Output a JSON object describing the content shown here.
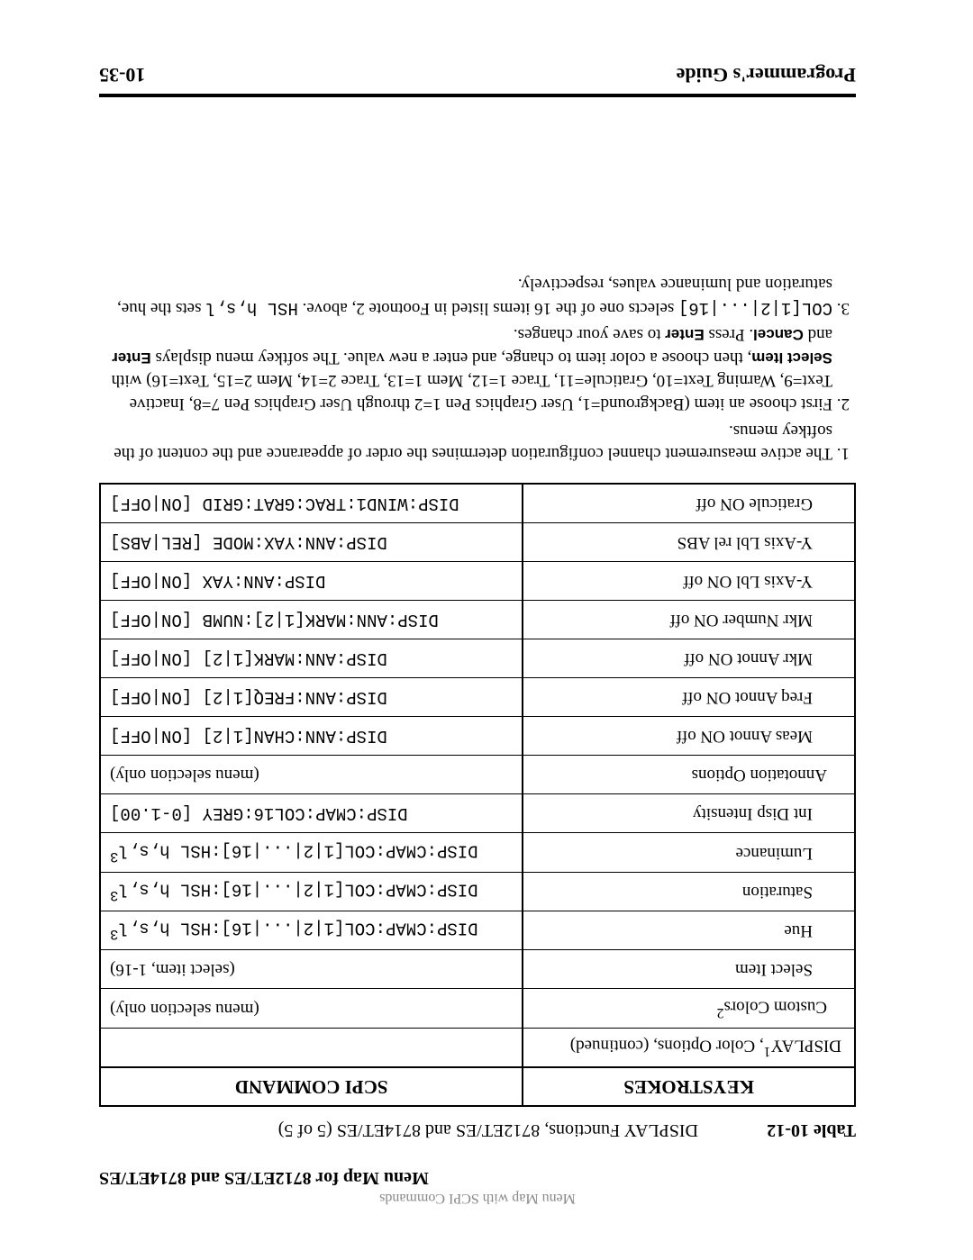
{
  "header": {
    "top_small": "Menu Map with SCPI Commands",
    "menu_map": "Menu Map for 8712ET/ES and 8714ET/ES"
  },
  "caption": {
    "label": "Table 10-12",
    "title": "DISPLAY Functions, 8712ET/ES and 8714ET/ES (5 of 5)"
  },
  "table": {
    "head_left": "KEYSTROKES",
    "head_right": "SCPI COMMAND",
    "rows": [
      {
        "k": "DISPLAY<sup>1</sup>, Color Options, (continued)",
        "s": "",
        "indent": 0
      },
      {
        "k": "Custom Colors<sup>2</sup>",
        "s": "(menu selection only)",
        "indent": 1,
        "menu": true
      },
      {
        "k": "Select Item",
        "s": "(select item, 1-16)",
        "indent": 2,
        "menu": true
      },
      {
        "k": "Hue",
        "s": "DISP:CMAP:COL[1|2|...|16]:HSL h,s,l<sup>3</sup>",
        "indent": 2
      },
      {
        "k": "Saturation",
        "s": "DISP:CMAP:COL[1|2|...|16]:HSL h,s,l<sup>3</sup>",
        "indent": 2
      },
      {
        "k": "Luminance",
        "s": "DISP:CMAP:COL[1|2|...|16]:HSL h,s,l<sup>3</sup>",
        "indent": 2
      },
      {
        "k": "Int Disp Intensity",
        "s": "DISP:CMAP:COL16:GREY [0-1.00]",
        "indent": 2
      },
      {
        "k": "Annotation Options",
        "s": "(menu selection only)",
        "indent": 1,
        "menu": true
      },
      {
        "k": "Meas Annot ON off",
        "s": "DISP:ANN:CHAN[1|2] [ON|OFF]",
        "indent": 2
      },
      {
        "k": "Freq Annot ON off",
        "s": "DISP:ANN:FREQ[1|2] [ON|OFF]",
        "indent": 2
      },
      {
        "k": "Mkr Annot ON off",
        "s": "DISP:ANN:MARK[1|2] [ON|OFF]",
        "indent": 2
      },
      {
        "k": "Mkr Number ON off",
        "s": "DISP:ANN:MARK[1|2]:NUMB [ON|OFF]",
        "indent": 2
      },
      {
        "k": "Y-Axis Lbl ON off",
        "s": "DISP:ANN:YAX [ON|OFF]",
        "indent": 2
      },
      {
        "k": "Y-Axis Lbl rel ABS",
        "s": "DISP:ANN:YAX:MODE [REL|ABS]",
        "indent": 2
      },
      {
        "k": "Graticule ON off",
        "s": "DISP:WIND1:TRAC:GRAT:GRID [ON|OFF]",
        "indent": 2,
        "last": true
      }
    ]
  },
  "notes": {
    "n1": "The active measurement channel configuration determines the order of appearance and the content of the softkey menus.",
    "n2a": "First choose an item (Background=1, User Graphics Pen 1=2 through User Graphics Pen 7=8, Inactive Text=9, Warning Text=10, Graticule=11, Trace 1=12, Mem 1=13, Trace 2=14, Mem 2=15, Text=16) with ",
    "n2_select": "Select Item",
    "n2b": ", then choose a color item to change, and enter a new value. The softkey menu displays ",
    "n2_enter": "Enter",
    "n2_and": " and ",
    "n2_cancel": "Cancel",
    "n2c": ". Press ",
    "n2d": " to save your changes.",
    "n3a": "COL[1|2|...|16]",
    "n3b": " selects one of the 16 items listed in Footnote 2, above. ",
    "n3c": "HSL h,s,l",
    "n3d": " sets the hue, saturation and luminance values, respectively."
  },
  "footer": {
    "left": "Programmer's Guide",
    "right": "10-35"
  }
}
